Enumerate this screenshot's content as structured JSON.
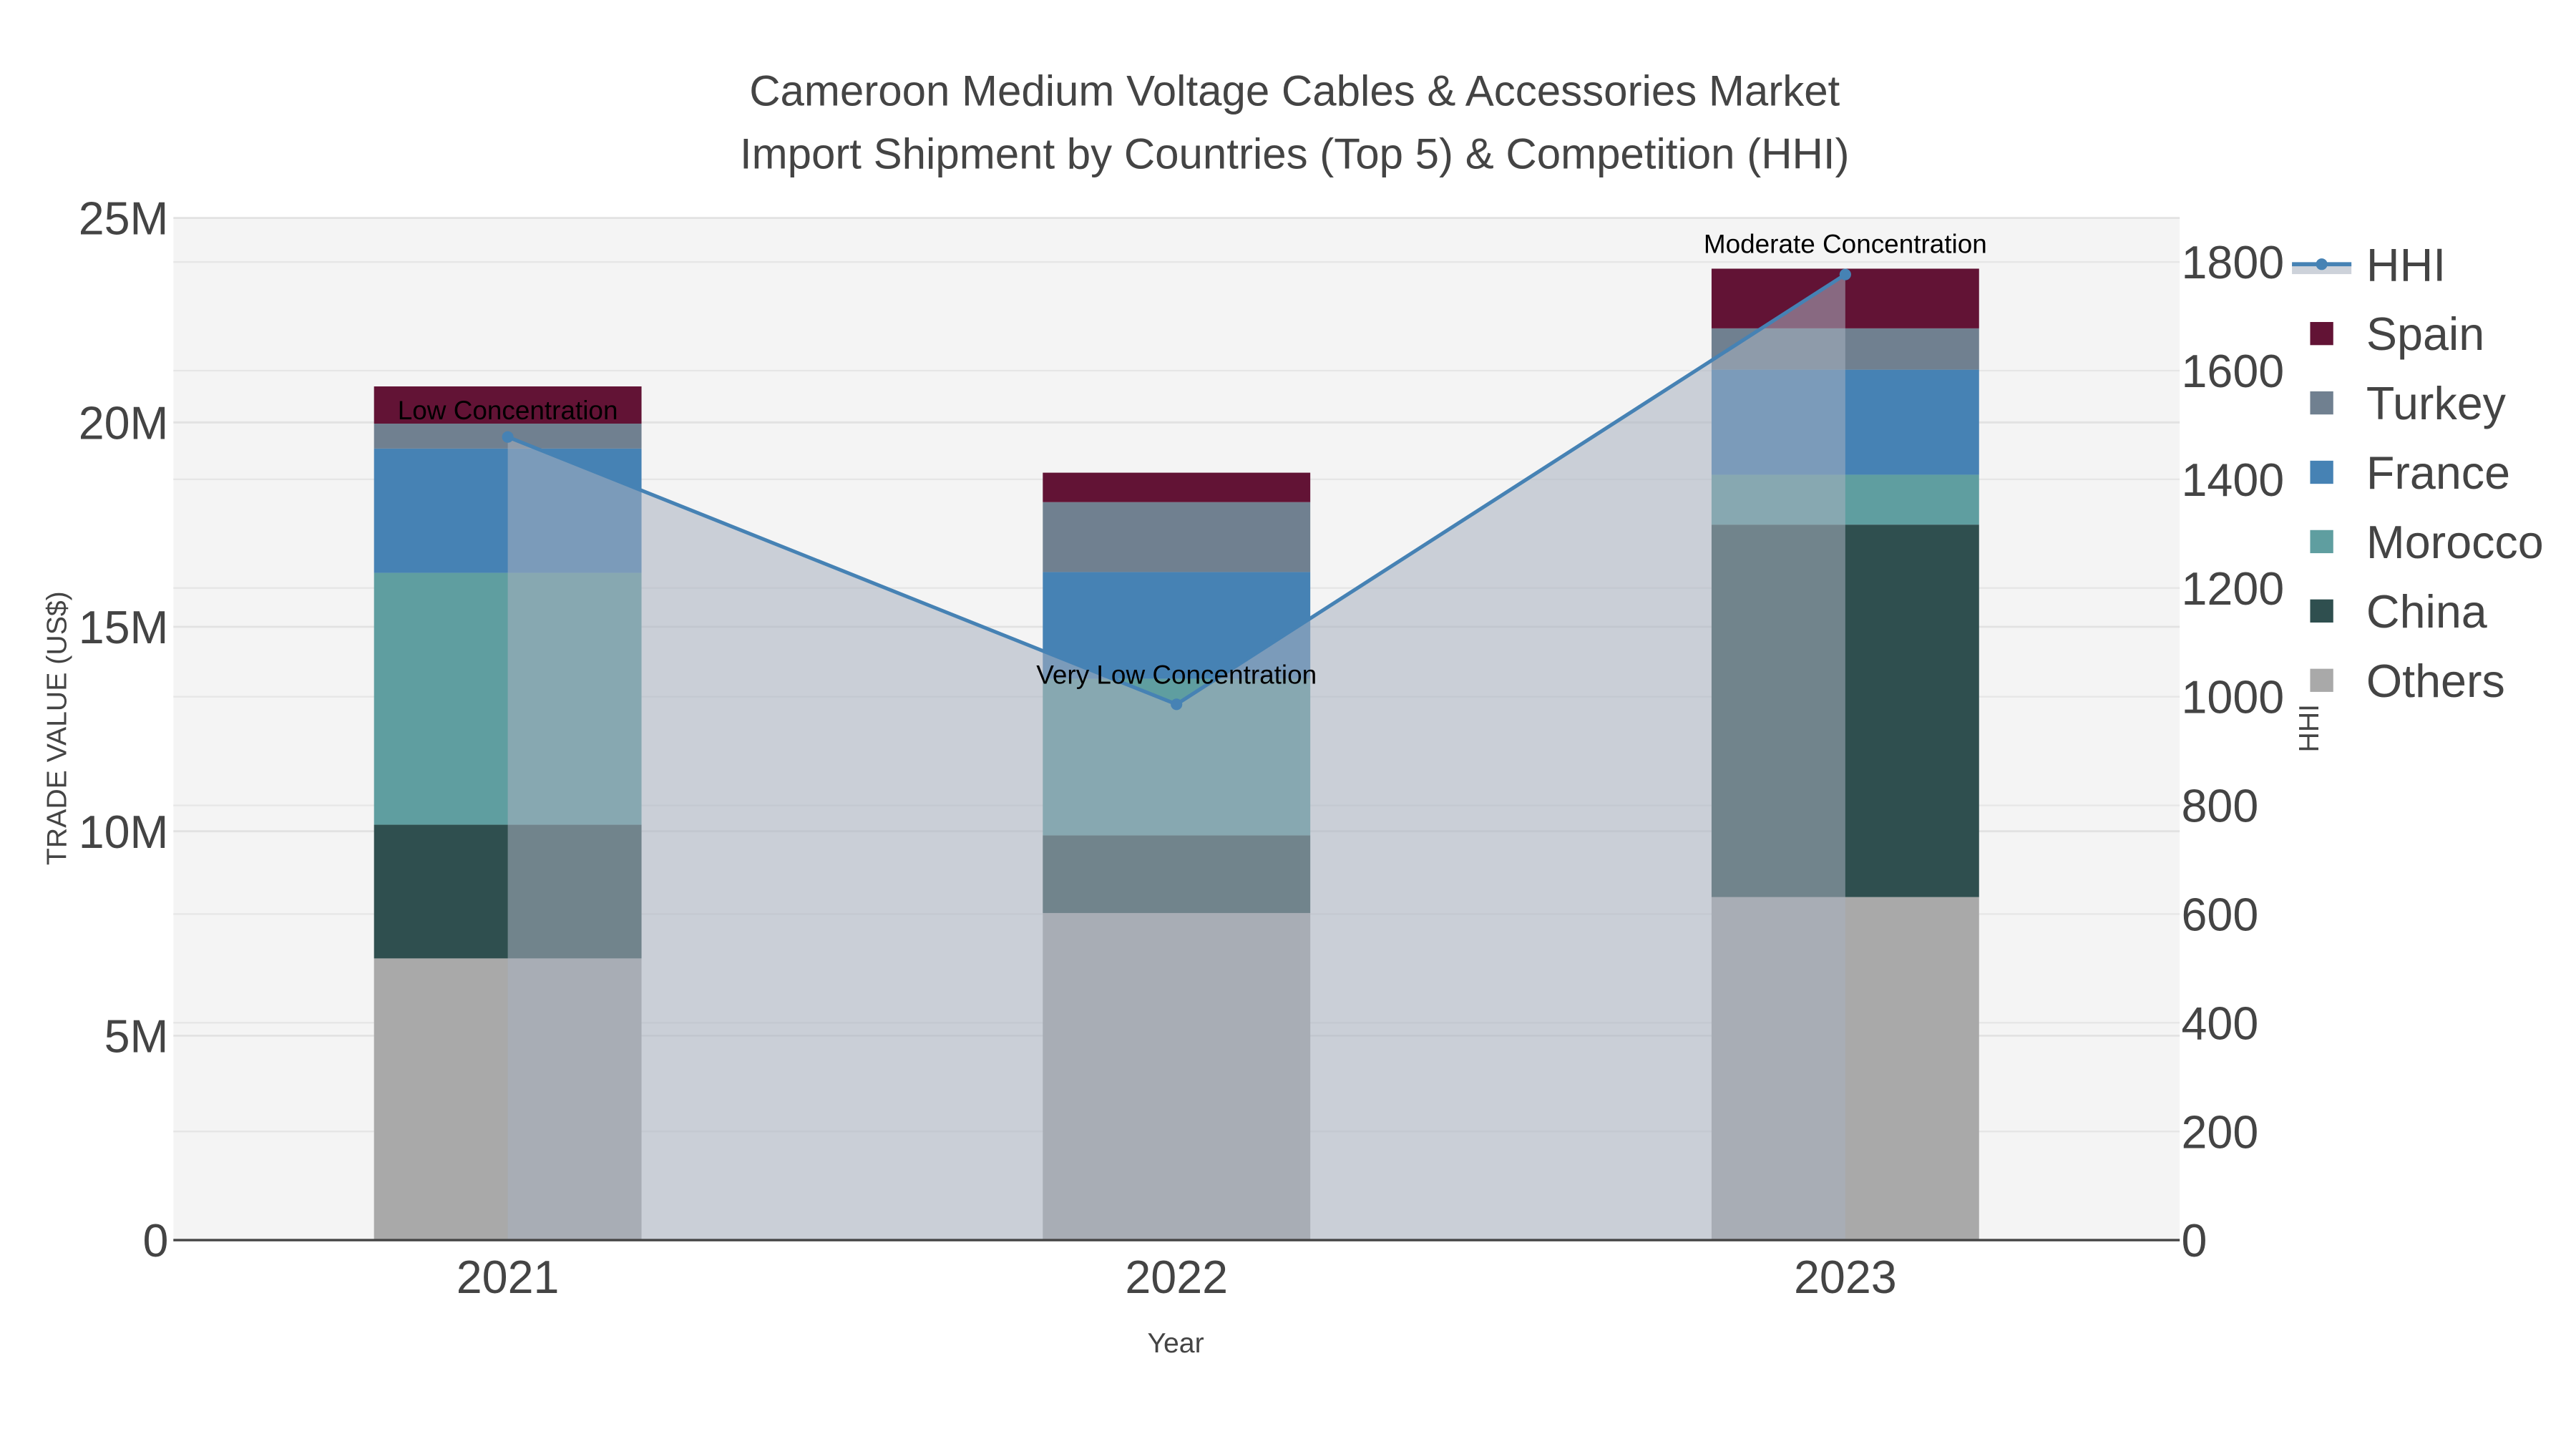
{
  "chart_data": {
    "type": "bar",
    "title": [
      "Cameroon Medium Voltage Cables & Accessories Market",
      "Import Shipment by Countries (Top 5) & Competition (HHI)"
    ],
    "xlabel": "Year",
    "ylabel": "TRADE VALUE (US$)",
    "y2label": "HHI",
    "categories": [
      "2021",
      "2022",
      "2023"
    ],
    "ylim": [
      0,
      25000000
    ],
    "y2lim": [
      0,
      1881
    ],
    "yticks": [
      0,
      5000000,
      10000000,
      15000000,
      20000000,
      25000000
    ],
    "ytick_labels": [
      "0",
      "5M",
      "10M",
      "15M",
      "20M",
      "25M"
    ],
    "y2ticks": [
      0,
      200,
      400,
      600,
      800,
      1000,
      1200,
      1400,
      1600,
      1800
    ],
    "y2tick_labels": [
      "0",
      "200",
      "400",
      "600",
      "800",
      "1000",
      "1200",
      "1400",
      "1600",
      "1800"
    ],
    "stacked": true,
    "series": [
      {
        "name": "Others",
        "color": "#a9a9a9",
        "values": [
          6890000,
          8000000,
          8390000
        ]
      },
      {
        "name": "China",
        "color": "#2f4f4f",
        "values": [
          3270000,
          1900000,
          9110000
        ]
      },
      {
        "name": "Morocco",
        "color": "#5f9ea0",
        "values": [
          6160000,
          3830000,
          1220000
        ]
      },
      {
        "name": "France",
        "color": "#4682b4",
        "values": [
          3040000,
          2610000,
          2570000
        ]
      },
      {
        "name": "Turkey",
        "color": "#708090",
        "values": [
          610000,
          1710000,
          1010000
        ]
      },
      {
        "name": "Spain",
        "color": "#621335",
        "values": [
          910000,
          720000,
          1460000
        ]
      }
    ],
    "hhi": {
      "name": "HHI",
      "color": "#4682b4",
      "values": [
        1478,
        986,
        1777
      ]
    },
    "annotations": [
      "Low Concentration",
      "Very Low Concentration",
      "Moderate Concentration"
    ],
    "legend": [
      "HHI",
      "Spain",
      "Turkey",
      "France",
      "Morocco",
      "China",
      "Others"
    ],
    "legend_position": "right",
    "grid": true
  }
}
